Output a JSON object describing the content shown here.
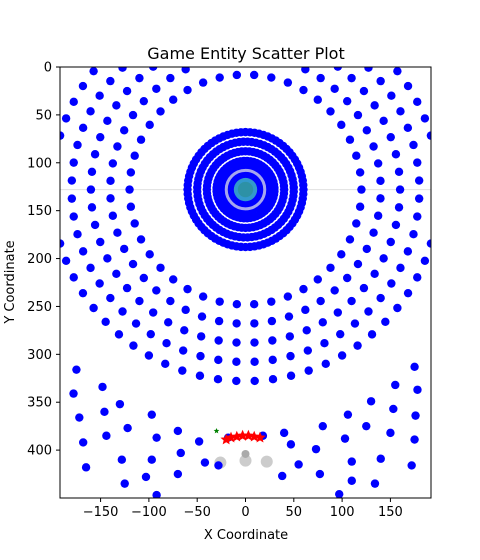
{
  "chart_data": {
    "type": "scatter",
    "title": "Game Entity Scatter Plot",
    "xlabel": "X Coordinate",
    "ylabel": "Y Coordinate",
    "xlim": [
      -192,
      192
    ],
    "ylim": [
      450,
      0
    ],
    "y_inverted": true,
    "grid": false,
    "legend": "none",
    "xticks": [
      -150,
      -100,
      -50,
      0,
      50,
      100,
      150
    ],
    "yticks": [
      0,
      50,
      100,
      150,
      200,
      250,
      300,
      350,
      400
    ],
    "colors": {
      "entity": "#0000ff",
      "center_ring": "#a6a6ee",
      "center_core": "#3399cc",
      "stars": "#ff0000",
      "marker_green": "#008000",
      "ghost": "#cccccc",
      "crosshair": "#e0e0e0"
    },
    "center": [
      0,
      128
    ],
    "ring_groups": [
      {
        "name": "outer_rings",
        "radii": [
          120,
          140,
          160,
          180,
          200
        ],
        "counts": [
          42,
          48,
          54,
          60,
          66
        ],
        "marker": "circle",
        "color": "#0000ff"
      },
      {
        "name": "inner_rings",
        "radii": [
          22,
          30,
          40,
          50,
          60
        ],
        "counts": [
          48,
          56,
          64,
          72,
          80
        ],
        "marker": "circle",
        "color": "#0000ff"
      }
    ],
    "center_marks": [
      {
        "x": 0,
        "y": 128,
        "radius": 22,
        "color": "#a6a6ee",
        "kind": "ring"
      },
      {
        "x": 0,
        "y": 128,
        "radius": 10,
        "color": "#3399cc",
        "kind": "core"
      }
    ],
    "lower_arc_points": [
      {
        "x": -175,
        "y": 316
      },
      {
        "x": -178,
        "y": 341
      },
      {
        "x": -172,
        "y": 366
      },
      {
        "x": -168,
        "y": 392
      },
      {
        "x": -165,
        "y": 418
      },
      {
        "x": -148,
        "y": 334
      },
      {
        "x": -146,
        "y": 360
      },
      {
        "x": -144,
        "y": 385
      },
      {
        "x": -130,
        "y": 352
      },
      {
        "x": -122,
        "y": 377
      },
      {
        "x": -128,
        "y": 410
      },
      {
        "x": -125,
        "y": 435
      },
      {
        "x": -97,
        "y": 363
      },
      {
        "x": -92,
        "y": 387
      },
      {
        "x": -97,
        "y": 410
      },
      {
        "x": -103,
        "y": 428
      },
      {
        "x": -70,
        "y": 380
      },
      {
        "x": -67,
        "y": 403
      },
      {
        "x": -70,
        "y": 425
      },
      {
        "x": -48,
        "y": 391
      },
      {
        "x": -42,
        "y": 413
      },
      {
        "x": -28,
        "y": 416
      },
      {
        "x": -92,
        "y": 447
      },
      {
        "x": 175,
        "y": 313
      },
      {
        "x": 178,
        "y": 337
      },
      {
        "x": 176,
        "y": 364
      },
      {
        "x": 175,
        "y": 389
      },
      {
        "x": 172,
        "y": 416
      },
      {
        "x": 155,
        "y": 332
      },
      {
        "x": 153,
        "y": 357
      },
      {
        "x": 150,
        "y": 382
      },
      {
        "x": 130,
        "y": 349
      },
      {
        "x": 125,
        "y": 375
      },
      {
        "x": 140,
        "y": 409
      },
      {
        "x": 134,
        "y": 435
      },
      {
        "x": 106,
        "y": 363
      },
      {
        "x": 103,
        "y": 388
      },
      {
        "x": 110,
        "y": 412
      },
      {
        "x": 110,
        "y": 432
      },
      {
        "x": 80,
        "y": 375
      },
      {
        "x": 73,
        "y": 399
      },
      {
        "x": 77,
        "y": 425
      },
      {
        "x": 47,
        "y": 394
      },
      {
        "x": 55,
        "y": 415
      },
      {
        "x": 38,
        "y": 427
      },
      {
        "x": 97,
        "y": 446
      },
      {
        "x": 40,
        "y": 382
      },
      {
        "x": 18,
        "y": 385
      },
      {
        "x": -18,
        "y": 387
      }
    ],
    "stars": [
      {
        "x": -20,
        "y": 389
      },
      {
        "x": -15,
        "y": 387
      },
      {
        "x": -9,
        "y": 386
      },
      {
        "x": -3,
        "y": 385
      },
      {
        "x": 3,
        "y": 385
      },
      {
        "x": 9,
        "y": 386
      },
      {
        "x": 15,
        "y": 387
      }
    ],
    "green_marker": {
      "x": -30,
      "y": 380
    },
    "ghost_points": [
      {
        "x": -26,
        "y": 413
      },
      {
        "x": 0,
        "y": 411
      },
      {
        "x": 22,
        "y": 412
      }
    ],
    "ghost_center": {
      "x": 0,
      "y": 404
    }
  }
}
